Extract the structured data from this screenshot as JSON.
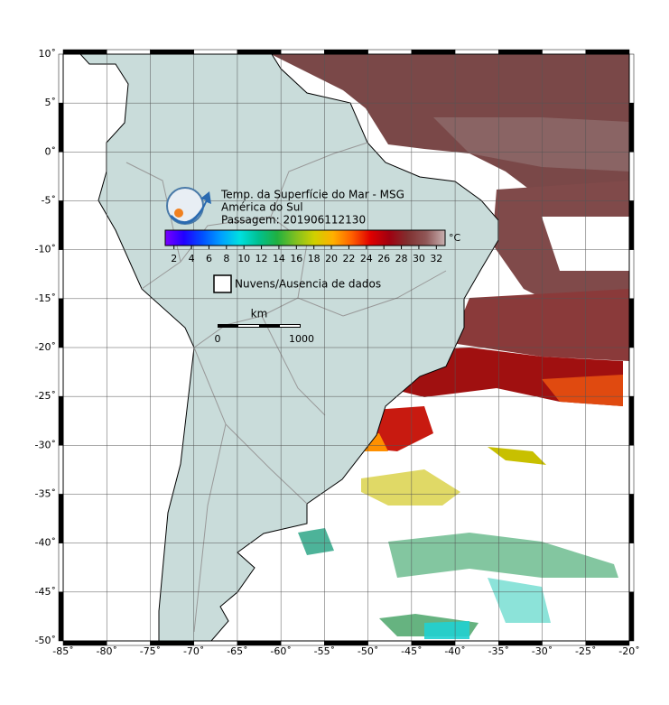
{
  "title": {
    "line1": "Temp. da Superfície do Mar - MSG",
    "line2": "América do Sul",
    "line3": "Passagem: 201906112130"
  },
  "colorbar": {
    "unit": "°C",
    "range": [
      1,
      33
    ],
    "ticks": [
      2,
      4,
      6,
      8,
      10,
      12,
      14,
      16,
      18,
      20,
      22,
      24,
      26,
      28,
      30,
      32
    ],
    "colors": [
      "#7a00ff",
      "#2000ff",
      "#0050ff",
      "#00a0ff",
      "#00e0e0",
      "#00c090",
      "#20b040",
      "#80c020",
      "#d0d000",
      "#ffb000",
      "#ff6000",
      "#e00000",
      "#a00010",
      "#803030",
      "#905858",
      "#c8b0b0"
    ]
  },
  "legend": {
    "no_data": "Nuvens/Ausencia de dados"
  },
  "scale_bar": {
    "unit": "km",
    "start": "0",
    "end": "1000"
  },
  "map": {
    "lon_range": [
      -85,
      -20
    ],
    "lat_range": [
      -50,
      10
    ],
    "lon_ticks": [
      {
        "value": -85,
        "label": "-85˚"
      },
      {
        "value": -80,
        "label": "-80˚"
      },
      {
        "value": -75,
        "label": "-75˚"
      },
      {
        "value": -70,
        "label": "-70˚"
      },
      {
        "value": -65,
        "label": "-65˚"
      },
      {
        "value": -60,
        "label": "-60˚"
      },
      {
        "value": -55,
        "label": "-55˚"
      },
      {
        "value": -50,
        "label": "-50˚"
      },
      {
        "value": -45,
        "label": "-45˚"
      },
      {
        "value": -40,
        "label": "-40˚"
      },
      {
        "value": -35,
        "label": "-35˚"
      },
      {
        "value": -30,
        "label": "-30˚"
      },
      {
        "value": -25,
        "label": "-25˚"
      },
      {
        "value": -20,
        "label": "-20˚"
      }
    ],
    "lat_ticks": [
      {
        "value": 10,
        "label": "10˚"
      },
      {
        "value": 5,
        "label": "5˚"
      },
      {
        "value": 0,
        "label": "0˚"
      },
      {
        "value": -5,
        "label": "-5˚"
      },
      {
        "value": -10,
        "label": "-10˚"
      },
      {
        "value": -15,
        "label": "-15˚"
      },
      {
        "value": -20,
        "label": "-20˚"
      },
      {
        "value": -25,
        "label": "-25˚"
      },
      {
        "value": -30,
        "label": "-30˚"
      },
      {
        "value": -35,
        "label": "-35˚"
      },
      {
        "value": -40,
        "label": "-40˚"
      },
      {
        "value": -45,
        "label": "-45˚"
      },
      {
        "value": -50,
        "label": "-50˚"
      }
    ]
  }
}
